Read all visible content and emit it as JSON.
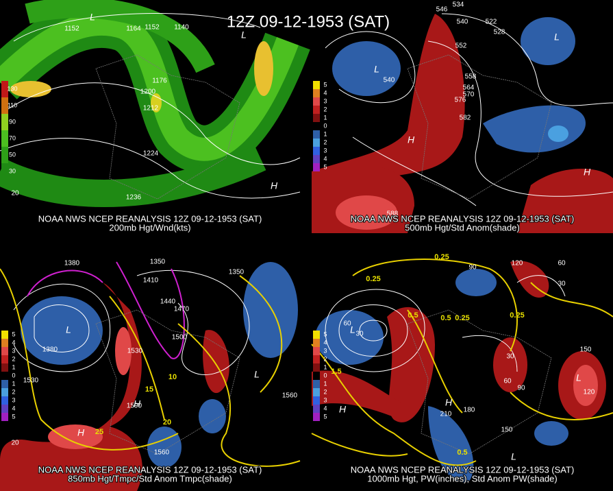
{
  "title": "12Z 09-12-1953 (SAT)",
  "panels": [
    {
      "source": "NOAA NWS NCEP REANALYSIS 12Z 09-12-1953 (SAT)",
      "field": "200mb Hgt/Wnd(kts)",
      "legend": [
        130,
        110,
        90,
        70,
        50,
        30
      ],
      "contour_labels": [
        1152,
        1164,
        1152,
        1140,
        1176,
        1200,
        1212,
        1224,
        1236,
        20
      ],
      "centers": [
        "L",
        "L",
        "H"
      ]
    },
    {
      "source": "NOAA NWS NCEP REANALYSIS 12Z 09-12-1953 (SAT)",
      "field": "500mb Hgt/Std Anom(shade)",
      "legend": [
        5,
        4,
        3,
        2,
        1,
        0,
        1,
        2,
        3,
        4,
        5
      ],
      "contour_labels": [
        546,
        534,
        540,
        522,
        528,
        552,
        540,
        558,
        564,
        570,
        576,
        582,
        588
      ],
      "centers": [
        "L",
        "L",
        "H",
        "H"
      ]
    },
    {
      "source": "NOAA NWS NCEP REANALYSIS 12Z 09-12-1953 (SAT)",
      "field": "850mb Hgt/Tmpc/Std Anom Tmpc(shade)",
      "legend": [
        5,
        4,
        3,
        2,
        1,
        0,
        1,
        2,
        3,
        4,
        5
      ],
      "contour_labels": [
        1380,
        1350,
        1350,
        1410,
        1440,
        1470,
        1500,
        1530,
        1530,
        1380,
        1560,
        1590,
        1560,
        10,
        15,
        20,
        25,
        20
      ],
      "centers": [
        "L",
        "L",
        "H",
        "H"
      ]
    },
    {
      "source": "NOAA NWS NCEP REANALYSIS 12Z 09-12-1953 (SAT)",
      "field": "1000mb Hgt, PW(inches), Std Anom PW(shade)",
      "legend": [
        5,
        4,
        3,
        2,
        1,
        0,
        1,
        2,
        3,
        4,
        5
      ],
      "contour_labels": [
        "0.25",
        "0.25",
        "0.5",
        "0.5",
        "0.25",
        "0.25",
        60,
        30,
        90,
        120,
        60,
        30,
        150,
        120,
        210,
        180,
        150,
        90,
        60,
        30,
        "1.5",
        "0.5"
      ],
      "centers": [
        "L",
        "L",
        "H",
        "H",
        "L"
      ]
    }
  ]
}
